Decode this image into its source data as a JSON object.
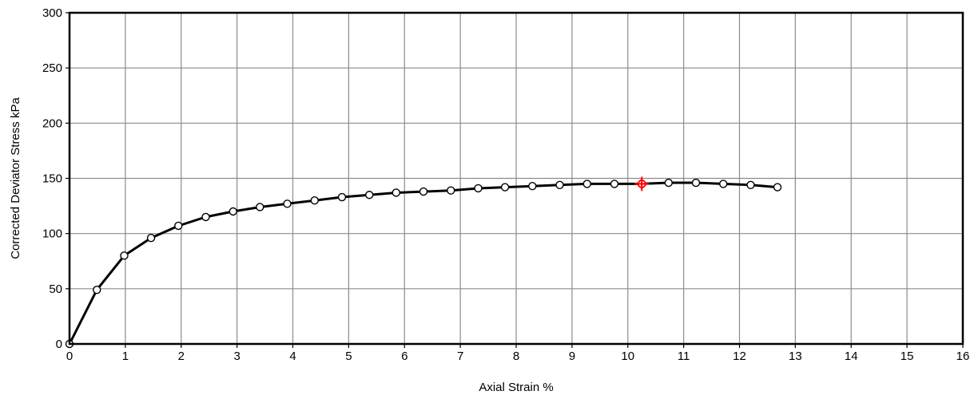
{
  "chart_data": {
    "type": "line",
    "title": "",
    "xlabel": "Axial Strain  %",
    "ylabel": "Corrected Deviator Stress  kPa",
    "xlim": [
      0,
      16
    ],
    "ylim": [
      0,
      300
    ],
    "x_ticks": [
      "0",
      "1",
      "2",
      "3",
      "4",
      "5",
      "6",
      "7",
      "8",
      "9",
      "10",
      "11",
      "12",
      "13",
      "14",
      "15",
      "16"
    ],
    "y_ticks": [
      "0",
      "50",
      "100",
      "150",
      "200",
      "250",
      "300"
    ],
    "grid": true,
    "legend": "none",
    "series": [
      {
        "line_color": "#000000",
        "marker": "open-circle",
        "x": [
          0,
          0.49,
          0.98,
          1.46,
          1.95,
          2.44,
          2.93,
          3.41,
          3.9,
          4.39,
          4.88,
          5.37,
          5.85,
          6.34,
          6.83,
          7.32,
          7.8,
          8.29,
          8.78,
          9.27,
          9.76,
          10.25,
          10.73,
          11.22,
          11.71,
          12.2,
          12.68
        ],
        "y": [
          0,
          49,
          80,
          96,
          107,
          115,
          120,
          124,
          127,
          130,
          133,
          135,
          137,
          138,
          139,
          141,
          142,
          143,
          144,
          145,
          145,
          145,
          146,
          146,
          145,
          144,
          142
        ]
      }
    ],
    "highlight_point": {
      "x": 10.25,
      "y": 145,
      "color": "#ff0000",
      "marker": "open-circle-cross"
    }
  }
}
